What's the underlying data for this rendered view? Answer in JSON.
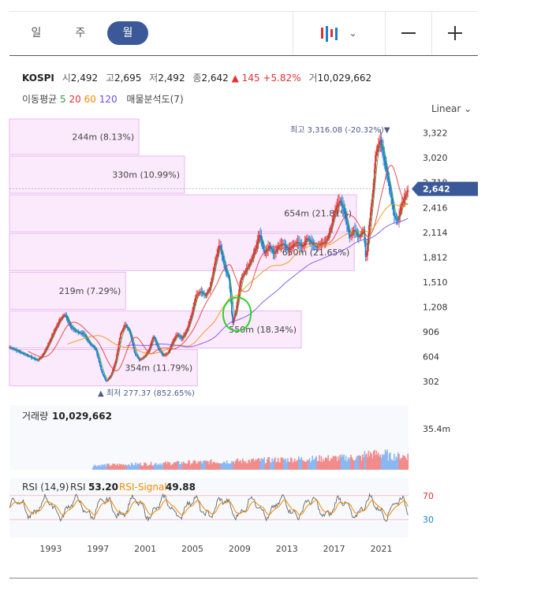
{
  "tabs": [
    {
      "label": "일",
      "active": false
    },
    {
      "label": "주",
      "active": false
    },
    {
      "label": "월",
      "active": true
    }
  ],
  "header": {
    "symbol": "KOSPI",
    "open_label": "시",
    "open": "2,492",
    "high_label": "고",
    "high": "2,695",
    "low_label": "저",
    "low": "2,492",
    "close_label": "종",
    "close": "2,642",
    "change": "▲ 145",
    "change_pct": "+5.82%",
    "volume_label": "거",
    "volume": "10,029,662"
  },
  "moving_avg": {
    "label": "이동평균",
    "periods": [
      "5",
      "20",
      "60",
      "120"
    ],
    "colors": [
      "#2f9e44",
      "#e03131",
      "#f08c00",
      "#7048e8"
    ],
    "extra": "매물분석도(7)"
  },
  "scale_toggle": "Linear ⌄",
  "chart_data": [
    {
      "type": "candlestick",
      "title": "KOSPI",
      "y_ticks": [
        "3,322",
        "3,020",
        "2,718",
        "2,416",
        "2,114",
        "1,812",
        "1,510",
        "1,208",
        "906",
        "604",
        "302"
      ],
      "y_tick_values": [
        3322,
        3020,
        2718,
        2416,
        2114,
        1812,
        1510,
        1208,
        906,
        604,
        302
      ],
      "ylim": [
        150,
        3500
      ],
      "x_ticks": [
        "1993",
        "1997",
        "2001",
        "2005",
        "2009",
        "2013",
        "2017",
        "2021"
      ],
      "xlim": [
        1990.0,
        2023.8
      ],
      "current_price": "2,642",
      "high_annotation": "최고 3,316.08 (-20.32%)▼",
      "low_annotation": "▲ 최저 277.37 (852.65%)",
      "close_path": [
        [
          1990.0,
          720
        ],
        [
          1990.6,
          680
        ],
        [
          1991.2,
          640
        ],
        [
          1991.8,
          600
        ],
        [
          1992.4,
          560
        ],
        [
          1992.8,
          620
        ],
        [
          1993.3,
          760
        ],
        [
          1993.8,
          920
        ],
        [
          1994.3,
          1060
        ],
        [
          1994.7,
          1120
        ],
        [
          1995.2,
          960
        ],
        [
          1995.8,
          900
        ],
        [
          1996.3,
          880
        ],
        [
          1996.8,
          760
        ],
        [
          1997.3,
          700
        ],
        [
          1997.8,
          420
        ],
        [
          1998.2,
          300
        ],
        [
          1998.6,
          380
        ],
        [
          1999.0,
          560
        ],
        [
          1999.4,
          880
        ],
        [
          1999.8,
          1000
        ],
        [
          2000.2,
          900
        ],
        [
          2000.6,
          650
        ],
        [
          2001.0,
          560
        ],
        [
          2001.4,
          600
        ],
        [
          2001.8,
          680
        ],
        [
          2002.2,
          860
        ],
        [
          2002.6,
          700
        ],
        [
          2003.0,
          620
        ],
        [
          2003.4,
          640
        ],
        [
          2003.8,
          780
        ],
        [
          2004.2,
          880
        ],
        [
          2004.6,
          820
        ],
        [
          2005.0,
          920
        ],
        [
          2005.4,
          1100
        ],
        [
          2005.8,
          1350
        ],
        [
          2006.2,
          1400
        ],
        [
          2006.6,
          1340
        ],
        [
          2007.0,
          1450
        ],
        [
          2007.4,
          1750
        ],
        [
          2007.8,
          1980
        ],
        [
          2008.2,
          1700
        ],
        [
          2008.6,
          1550
        ],
        [
          2008.9,
          1000
        ],
        [
          2009.2,
          1180
        ],
        [
          2009.6,
          1550
        ],
        [
          2010.0,
          1650
        ],
        [
          2010.4,
          1750
        ],
        [
          2010.8,
          1900
        ],
        [
          2011.2,
          2100
        ],
        [
          2011.6,
          1850
        ],
        [
          2012.0,
          1950
        ],
        [
          2012.4,
          1850
        ],
        [
          2012.8,
          1950
        ],
        [
          2013.2,
          1980
        ],
        [
          2013.6,
          1900
        ],
        [
          2014.0,
          1960
        ],
        [
          2014.4,
          2000
        ],
        [
          2014.8,
          1930
        ],
        [
          2015.2,
          2050
        ],
        [
          2015.6,
          1980
        ],
        [
          2016.0,
          1930
        ],
        [
          2016.4,
          1980
        ],
        [
          2016.8,
          2000
        ],
        [
          2017.2,
          2150
        ],
        [
          2017.6,
          2400
        ],
        [
          2018.0,
          2500
        ],
        [
          2018.4,
          2350
        ],
        [
          2018.8,
          2050
        ],
        [
          2019.2,
          2150
        ],
        [
          2019.6,
          2050
        ],
        [
          2020.0,
          2150
        ],
        [
          2020.2,
          1750
        ],
        [
          2020.5,
          2250
        ],
        [
          2020.8,
          2650
        ],
        [
          2021.0,
          3050
        ],
        [
          2021.4,
          3250
        ],
        [
          2021.8,
          2950
        ],
        [
          2022.2,
          2650
        ],
        [
          2022.6,
          2300
        ],
        [
          2022.9,
          2250
        ],
        [
          2023.2,
          2450
        ],
        [
          2023.5,
          2550
        ],
        [
          2023.8,
          2642
        ]
      ],
      "volume_profile": [
        {
          "label": "244m (8.13%)",
          "low": 3050,
          "high": 3500,
          "value": 244
        },
        {
          "label": "330m (10.99%)",
          "low": 2580,
          "high": 3050,
          "value": 330
        },
        {
          "label": "654m (21.81%)",
          "low": 2110,
          "high": 2580,
          "value": 654
        },
        {
          "label": "650m (21.65%)",
          "low": 1640,
          "high": 2110,
          "value": 650
        },
        {
          "label": "219m (7.29%)",
          "low": 1170,
          "high": 1640,
          "value": 219
        },
        {
          "label": "550m (18.34%)",
          "low": 700,
          "high": 1170,
          "value": 550
        },
        {
          "label": "354m (11.79%)",
          "low": 240,
          "high": 700,
          "value": 354
        }
      ]
    },
    {
      "type": "bar",
      "title": "거래량",
      "last_value": "10,029,662",
      "y_tick": "35.4m",
      "y_tick_value": 35.4,
      "unit": "m"
    },
    {
      "type": "line",
      "title": "RSI (14,9)",
      "series": [
        {
          "name": "RSI",
          "last": "53.20",
          "color": "#666666"
        },
        {
          "name": "RSI-Signal",
          "last": "49.88",
          "color": "#f08c00"
        }
      ],
      "y_ticks": [
        "70",
        "30"
      ],
      "y_tick_values": [
        70,
        30
      ],
      "ylim": [
        0,
        100
      ]
    }
  ],
  "colors": {
    "up": "#e03131",
    "down": "#1c7ed6",
    "accent": "#3b5998",
    "profile_fill": "#fbeafc",
    "profile_stroke": "#e8b8ef",
    "annotation": "#2fd12f"
  }
}
